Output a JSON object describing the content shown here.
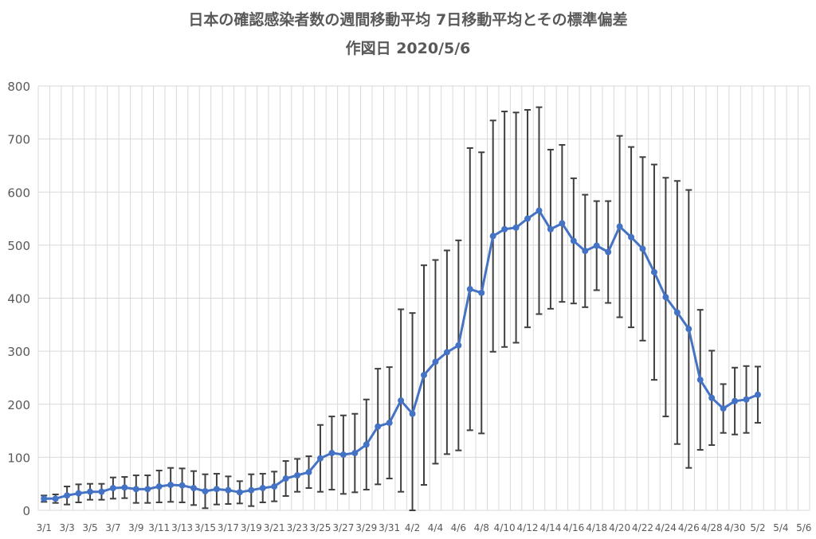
{
  "chart_data": {
    "type": "line",
    "title": "日本の確認感染者数の週間移動平均 7日移動平均とその標準偏差",
    "subtitle": "作図日 2020/5/6",
    "xlabel": "",
    "ylabel": "",
    "ylim": [
      0,
      800
    ],
    "y_ticks": [
      0,
      100,
      200,
      300,
      400,
      500,
      600,
      700,
      800
    ],
    "grid": true,
    "legend": "none",
    "colors": {
      "series": "#4472C4",
      "error_bar": "#404040",
      "grid": "#D9D9D9",
      "text": "#595959"
    },
    "x_tick_labels": [
      "3/1",
      "3/3",
      "3/5",
      "3/7",
      "3/9",
      "3/11",
      "3/13",
      "3/15",
      "3/17",
      "3/19",
      "3/21",
      "3/23",
      "3/25",
      "3/27",
      "3/29",
      "3/31",
      "4/2",
      "4/4",
      "4/6",
      "4/8",
      "4/10",
      "4/12",
      "4/14",
      "4/16",
      "4/18",
      "4/20",
      "4/22",
      "4/24",
      "4/26",
      "4/28",
      "4/30",
      "5/2",
      "5/4",
      "5/6"
    ],
    "categories": [
      "3/1",
      "3/2",
      "3/3",
      "3/4",
      "3/5",
      "3/6",
      "3/7",
      "3/8",
      "3/9",
      "3/10",
      "3/11",
      "3/12",
      "3/13",
      "3/14",
      "3/15",
      "3/16",
      "3/17",
      "3/18",
      "3/19",
      "3/20",
      "3/21",
      "3/22",
      "3/23",
      "3/24",
      "3/25",
      "3/26",
      "3/27",
      "3/28",
      "3/29",
      "3/30",
      "3/31",
      "4/1",
      "4/2",
      "4/3",
      "4/4",
      "4/5",
      "4/6",
      "4/7",
      "4/8",
      "4/9",
      "4/10",
      "4/11",
      "4/12",
      "4/13",
      "4/14",
      "4/15",
      "4/16",
      "4/17",
      "4/18",
      "4/19",
      "4/20",
      "4/21",
      "4/22",
      "4/23",
      "4/24",
      "4/25",
      "4/26",
      "4/27",
      "4/28",
      "4/29",
      "4/30",
      "5/1",
      "5/2",
      "5/3",
      "5/4",
      "5/5",
      "5/6"
    ],
    "series": [
      {
        "values": [
          22,
          22,
          28,
          32,
          35,
          35,
          42,
          43,
          40,
          40,
          45,
          48,
          47,
          42,
          36,
          40,
          38,
          34,
          38,
          42,
          45,
          60,
          66,
          72,
          98,
          108,
          105,
          108,
          124,
          158,
          165,
          207,
          182,
          255,
          280,
          298,
          311,
          417,
          410,
          517,
          530,
          533,
          550,
          565,
          530,
          541,
          508,
          489,
          499,
          487,
          535,
          515,
          493,
          449,
          402,
          373,
          342,
          246,
          212,
          192,
          206,
          209,
          218,
          null,
          null,
          null,
          null
        ],
        "sd": [
          6,
          8,
          17,
          17,
          15,
          15,
          20,
          20,
          26,
          26,
          30,
          32,
          32,
          32,
          32,
          29,
          26,
          21,
          30,
          27,
          28,
          33,
          31,
          30,
          63,
          69,
          74,
          74,
          85,
          109,
          105,
          172,
          190,
          207,
          192,
          192,
          198,
          266,
          265,
          218,
          222,
          217,
          205,
          195,
          150,
          148,
          118,
          106,
          84,
          96,
          171,
          170,
          173,
          203,
          225,
          248,
          262,
          132,
          89,
          46,
          63,
          63,
          53,
          null,
          null,
          null,
          null
        ]
      }
    ]
  }
}
